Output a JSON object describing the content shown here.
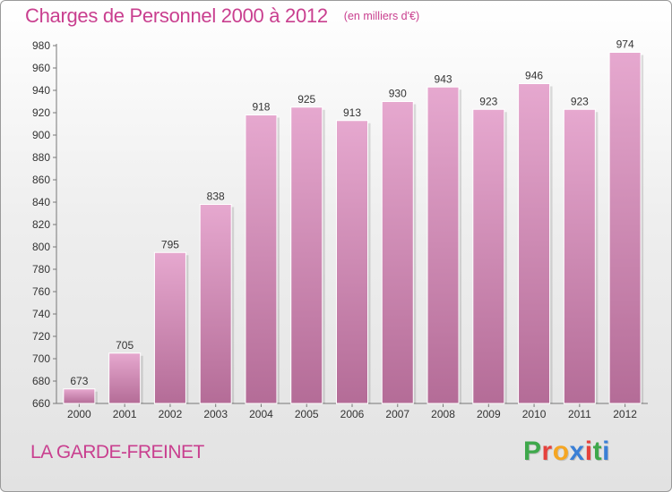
{
  "title": "Charges de Personnel 2000 à 2012",
  "subtitle": "(en milliers d'€)",
  "city": "LA GARDE-FREINET",
  "brand": {
    "letters": [
      "P",
      "r",
      "o",
      "x",
      "i",
      "t",
      "i"
    ],
    "colors": [
      "#3ea84b",
      "#e5413c",
      "#f5a623",
      "#3a7fd6",
      "#e5413c",
      "#3ea84b",
      "#3a7fd6"
    ]
  },
  "colors": {
    "bar_top": "#e6a8cf",
    "bar_bottom": "#b46c97",
    "text": "#c93f8f",
    "axis": "#777777"
  },
  "chart_data": {
    "type": "bar",
    "categories": [
      "2000",
      "2001",
      "2002",
      "2003",
      "2004",
      "2005",
      "2006",
      "2007",
      "2008",
      "2009",
      "2010",
      "2011",
      "2012"
    ],
    "values": [
      673,
      705,
      795,
      838,
      918,
      925,
      913,
      930,
      943,
      923,
      946,
      923,
      974
    ],
    "title": "Charges de Personnel 2000 à 2012",
    "subtitle": "(en milliers d'€)",
    "ylim": [
      660,
      980
    ],
    "yticks": [
      660,
      680,
      700,
      720,
      740,
      760,
      780,
      800,
      820,
      840,
      860,
      880,
      900,
      920,
      940,
      960,
      980
    ],
    "grid": false,
    "legend": "none"
  }
}
